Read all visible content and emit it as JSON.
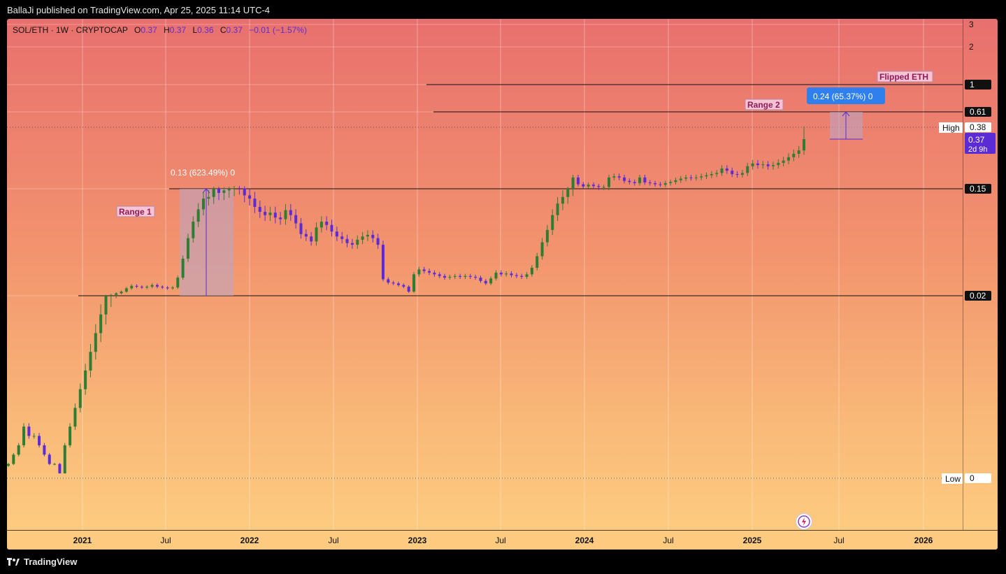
{
  "header": {
    "published": "BallaJi published on TradingView.com, Apr 25, 2025 11:14 UTC-4"
  },
  "legend": {
    "symbol": "SOL/ETH · 1W · CRYPTOCAP",
    "open_label": "O",
    "open": "0.37",
    "high_label": "H",
    "high": "0.37",
    "low_label": "L",
    "low": "0.36",
    "close_label": "C",
    "close": "0.37",
    "change": "−0.01 (−1.57%)"
  },
  "colors": {
    "up_candle": "#2e7d32",
    "down_candle": "#5b2bd6",
    "measure_box": "#b9a6c9",
    "measure_label": "#2f80ed",
    "range_label_bg": "#f8c3d3",
    "range_label_text": "#8e1b5a"
  },
  "annotations": {
    "range1_label": "Range 1",
    "range2_label": "Range 2",
    "flipped_label": "Flipped ETH",
    "measure1_text": "0.13 (623.49%) 0",
    "measure2_text": "0.24 (65.37%) 0",
    "high_label": "High",
    "low_label": "Low"
  },
  "price_tags": {
    "p1": "1",
    "p061": "0.61",
    "p038": "0.38",
    "p037": "0.37",
    "countdown": "2d 9h",
    "p015": "0.15",
    "p002": "0.02",
    "p0": "0"
  },
  "chart_data": {
    "type": "candlestick",
    "title": "SOL/ETH · 1W · CRYPTOCAP",
    "x_ticks": [
      "2021",
      "Jul",
      "2022",
      "Jul",
      "2023",
      "Jul",
      "2024",
      "Jul",
      "2025",
      "Jul",
      "2026"
    ],
    "y_ticks": [
      "3",
      "2",
      "1",
      "0.61",
      "0.15",
      "0.02",
      "0"
    ],
    "horizontal_levels": [
      {
        "value": 1,
        "label": "Flipped ETH"
      },
      {
        "value": 0.61,
        "label": "Range 2"
      },
      {
        "value": 0.15
      },
      {
        "value": 0.02,
        "label": "Range 1"
      }
    ],
    "high": 0.38,
    "low": 0,
    "last_price": 0.37,
    "measurements": [
      {
        "from": 0.02,
        "to": 0.15,
        "text": "0.13 (623.49%) 0"
      },
      {
        "from": 0.37,
        "to": 0.61,
        "text": "0.24 (65.37%) 0"
      }
    ],
    "close_series": [
      0.002,
      0.003,
      0.004,
      0.006,
      0.005,
      0.005,
      0.004,
      0.003,
      0.002,
      0.002,
      0.001,
      0.004,
      0.006,
      0.008,
      0.01,
      0.012,
      0.014,
      0.016,
      0.018,
      0.02,
      0.021,
      0.023,
      0.025,
      0.029,
      0.032,
      0.031,
      0.03,
      0.031,
      0.033,
      0.031,
      0.03,
      0.029,
      0.03,
      0.042,
      0.065,
      0.09,
      0.11,
      0.125,
      0.138,
      0.14,
      0.15,
      0.145,
      0.148,
      0.15,
      0.153,
      0.152,
      0.142,
      0.138,
      0.128,
      0.122,
      0.118,
      0.121,
      0.115,
      0.113,
      0.124,
      0.118,
      0.108,
      0.095,
      0.092,
      0.086,
      0.103,
      0.11,
      0.106,
      0.098,
      0.092,
      0.089,
      0.084,
      0.082,
      0.088,
      0.092,
      0.094,
      0.09,
      0.082,
      0.04,
      0.036,
      0.035,
      0.033,
      0.031,
      0.025,
      0.046,
      0.052,
      0.05,
      0.048,
      0.046,
      0.044,
      0.042,
      0.043,
      0.044,
      0.043,
      0.044,
      0.043,
      0.042,
      0.038,
      0.035,
      0.041,
      0.048,
      0.046,
      0.047,
      0.045,
      0.044,
      0.043,
      0.046,
      0.054,
      0.068,
      0.085,
      0.1,
      0.118,
      0.132,
      0.14,
      0.15,
      0.2,
      0.17,
      0.16,
      0.168,
      0.162,
      0.158,
      0.158,
      0.2,
      0.205,
      0.2,
      0.185,
      0.18,
      0.175,
      0.2,
      0.178,
      0.175,
      0.17,
      0.168,
      0.175,
      0.18,
      0.188,
      0.195,
      0.2,
      0.198,
      0.2,
      0.205,
      0.21,
      0.215,
      0.22,
      0.24,
      0.23,
      0.215,
      0.212,
      0.22,
      0.25,
      0.262,
      0.255,
      0.258,
      0.25,
      0.255,
      0.265,
      0.275,
      0.29,
      0.305,
      0.32,
      0.37
    ]
  }
}
